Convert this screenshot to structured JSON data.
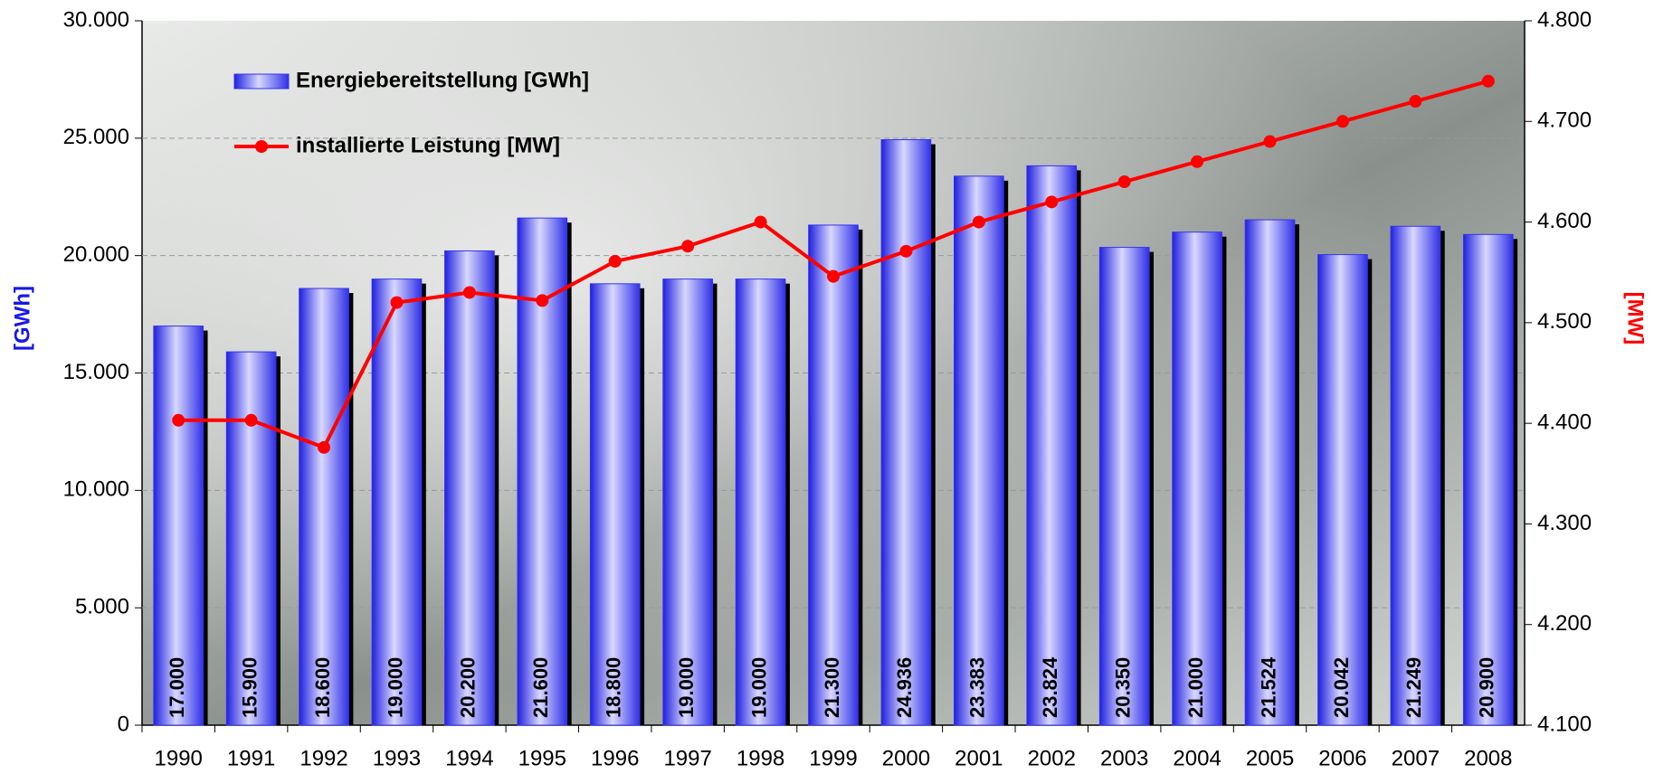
{
  "chart_data": {
    "type": "bar",
    "categories": [
      "1990",
      "1991",
      "1992",
      "1993",
      "1994",
      "1995",
      "1996",
      "1997",
      "1998",
      "1999",
      "2000",
      "2001",
      "2002",
      "2003",
      "2004",
      "2005",
      "2006",
      "2007",
      "2008"
    ],
    "series": [
      {
        "name": "Energiebereitstellung [GWh]",
        "type": "bar",
        "color": "#3434f0",
        "values": [
          17000,
          15900,
          18600,
          19000,
          20200,
          21600,
          18800,
          19000,
          19000,
          21300,
          24936,
          23383,
          23824,
          20350,
          21000,
          21524,
          20042,
          21249,
          20900
        ],
        "value_labels": [
          "17.000",
          "15.900",
          "18.600",
          "19.000",
          "20.200",
          "21.600",
          "18.800",
          "19.000",
          "19.000",
          "21.300",
          "24.936",
          "23.383",
          "23.824",
          "20.350",
          "21.000",
          "21.524",
          "20.042",
          "21.249",
          "20.900"
        ]
      },
      {
        "name": "installierte Leistung [MW]",
        "type": "line",
        "axis": "y2",
        "color": "#ff0000",
        "values": [
          4403,
          4403,
          4376,
          4520,
          4530,
          4522,
          4561,
          4576,
          4600,
          4546,
          4571,
          4600,
          4620,
          4640,
          4660,
          4680,
          4700,
          4720,
          4740
        ]
      }
    ],
    "y_label": "[GWh]",
    "y2_label": "[MW]",
    "ylim": [
      0,
      30000
    ],
    "yticks": [
      0,
      {
        "value": 5000,
        "label": "5.000"
      },
      {
        "value": 10000,
        "label": "10.000"
      },
      {
        "value": 15000,
        "label": "15.000"
      },
      {
        "value": 20000,
        "label": "20.000"
      },
      {
        "value": 25000,
        "label": "25.000"
      },
      {
        "value": 30000,
        "label": "30.000"
      }
    ],
    "y2lim": [
      4100,
      4800
    ],
    "y2ticks": [
      {
        "value": 4100,
        "label": "4.100"
      },
      {
        "value": 4200,
        "label": "4.200"
      },
      {
        "value": 4300,
        "label": "4.300"
      },
      {
        "value": 4400,
        "label": "4.400"
      },
      {
        "value": 4500,
        "label": "4.500"
      },
      {
        "value": 4600,
        "label": "4.600"
      },
      {
        "value": 4700,
        "label": "4.700"
      },
      {
        "value": 4800,
        "label": "4.800"
      }
    ],
    "grid": true
  }
}
